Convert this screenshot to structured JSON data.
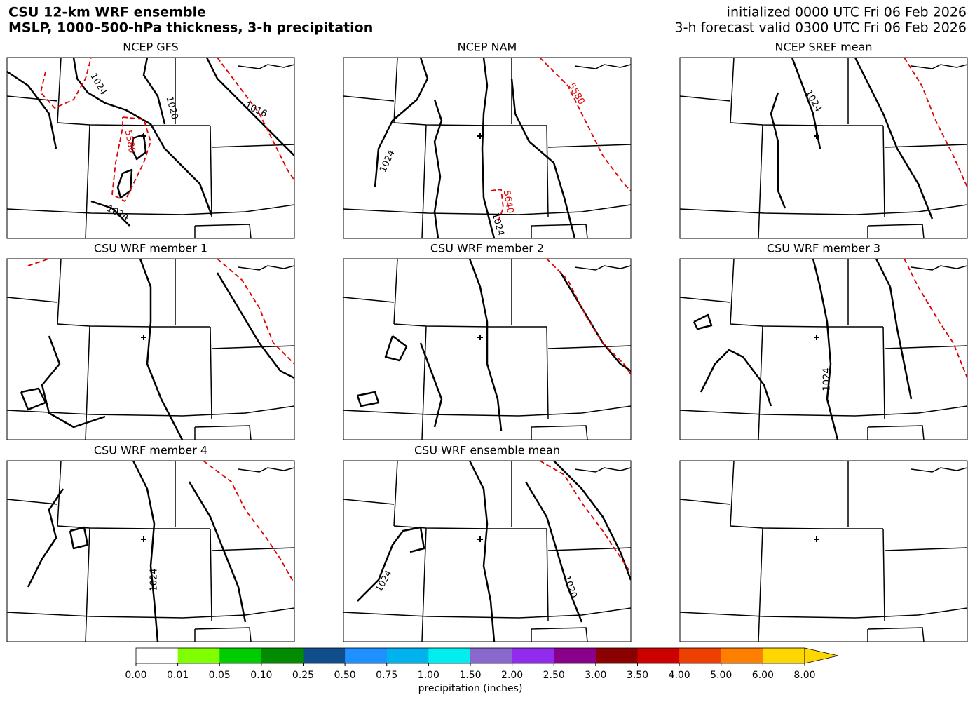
{
  "header": {
    "title": "CSU 12-km WRF ensemble",
    "subtitle": "MSLP, 1000–500-hPa thickness, 3-h precipitation",
    "initialized": "initialized 0000 UTC Fri 06 Feb 2026",
    "valid": "3-h forecast valid 0300 UTC Fri 06 Feb 2026"
  },
  "panels": [
    {
      "title": "NCEP GFS",
      "contour_labels": [
        {
          "text": "1024",
          "color": "#000000"
        },
        {
          "text": "1020",
          "color": "#000000"
        },
        {
          "text": "1016",
          "color": "#000000"
        },
        {
          "text": "5580",
          "color": "#e00000"
        },
        {
          "text": "1024",
          "color": "#000000"
        }
      ]
    },
    {
      "title": "NCEP NAM",
      "contour_labels": [
        {
          "text": "1024",
          "color": "#000000"
        },
        {
          "text": "5580",
          "color": "#e00000"
        },
        {
          "text": "5640",
          "color": "#e00000"
        },
        {
          "text": "1024",
          "color": "#000000"
        }
      ]
    },
    {
      "title": "NCEP SREF mean",
      "contour_labels": [
        {
          "text": "1024",
          "color": "#000000"
        }
      ]
    },
    {
      "title": "CSU WRF member 1",
      "contour_labels": []
    },
    {
      "title": "CSU WRF member 2",
      "contour_labels": []
    },
    {
      "title": "CSU WRF member 3",
      "contour_labels": [
        {
          "text": "1024",
          "color": "#000000"
        }
      ]
    },
    {
      "title": "CSU WRF member 4",
      "contour_labels": [
        {
          "text": "1024",
          "color": "#000000"
        }
      ]
    },
    {
      "title": "CSU WRF ensemble mean",
      "contour_labels": [
        {
          "text": "1024",
          "color": "#000000"
        },
        {
          "text": "1020",
          "color": "#000000"
        }
      ]
    }
  ],
  "colorbar": {
    "colors": [
      "#ffffff",
      "#7fff00",
      "#00cd00",
      "#008b00",
      "#104e8b",
      "#1e90ff",
      "#00b2ee",
      "#00eeee",
      "#8968cd",
      "#912cee",
      "#8b008b",
      "#8b0000",
      "#cd0000",
      "#ee4000",
      "#ff7f00",
      "#ffd700"
    ],
    "ticks": [
      "0.00",
      "0.01",
      "0.05",
      "0.10",
      "0.25",
      "0.50",
      "0.75",
      "1.00",
      "1.50",
      "2.00",
      "2.50",
      "3.00",
      "3.50",
      "4.00",
      "5.00",
      "6.00",
      "8.00"
    ],
    "label": "precipitation (inches)"
  }
}
